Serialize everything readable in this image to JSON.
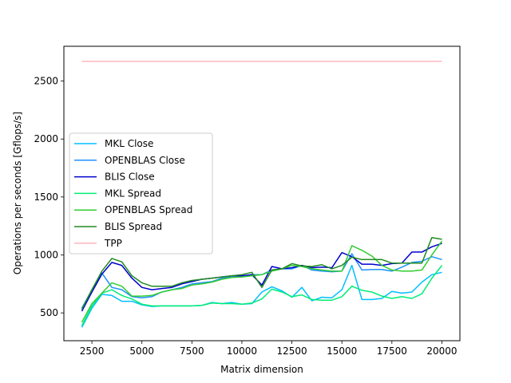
{
  "chart_data": {
    "type": "line",
    "title": "",
    "xlabel": "Matrix dimension",
    "ylabel": "Operations per seconds [Gflops/s]",
    "xlim": [
      1100,
      20900
    ],
    "ylim": [
      260,
      2800
    ],
    "xticks": [
      2500,
      5000,
      7500,
      10000,
      12500,
      15000,
      17500,
      20000
    ],
    "xtick_labels": [
      "2500",
      "5000",
      "7500",
      "10000",
      "12500",
      "15000",
      "17500",
      "20000"
    ],
    "yticks": [
      500,
      1000,
      1500,
      2000,
      2500
    ],
    "ytick_labels": [
      "500",
      "1000",
      "1500",
      "2000",
      "2500"
    ],
    "grid": false,
    "legend_position": "center-left",
    "x": [
      2000,
      2500,
      3000,
      3500,
      4000,
      4500,
      5000,
      5500,
      6000,
      6500,
      7000,
      7500,
      8000,
      8500,
      9000,
      9500,
      10000,
      10500,
      11000,
      11500,
      12000,
      12500,
      13000,
      13500,
      14000,
      14500,
      15000,
      15500,
      16000,
      16500,
      17000,
      17500,
      18000,
      18500,
      19000,
      19500,
      20000
    ],
    "series": [
      {
        "name": "MKL Close",
        "color": "#00bfff",
        "values": [
          375,
          540,
          660,
          650,
          600,
          600,
          570,
          555,
          560,
          560,
          560,
          560,
          565,
          590,
          580,
          590,
          575,
          580,
          680,
          725,
          690,
          635,
          720,
          605,
          635,
          630,
          700,
          910,
          615,
          615,
          625,
          685,
          670,
          680,
          765,
          830,
          850
        ]
      },
      {
        "name": "OPENBLAS Close",
        "color": "#1e90ff",
        "values": [
          540,
          700,
          845,
          720,
          700,
          640,
          630,
          640,
          680,
          700,
          720,
          750,
          760,
          770,
          800,
          810,
          810,
          830,
          830,
          870,
          880,
          880,
          910,
          870,
          860,
          855,
          860,
          1010,
          870,
          875,
          875,
          860,
          895,
          935,
          945,
          985,
          960
        ]
      },
      {
        "name": "BLIS Close",
        "color": "#0000cd",
        "values": [
          515,
          680,
          835,
          935,
          910,
          800,
          720,
          700,
          710,
          720,
          750,
          770,
          790,
          800,
          810,
          820,
          820,
          830,
          740,
          900,
          880,
          890,
          910,
          890,
          895,
          890,
          1020,
          985,
          920,
          920,
          910,
          925,
          930,
          1025,
          1025,
          1070,
          1100
        ]
      },
      {
        "name": "MKL Spread",
        "color": "#00ee76",
        "values": [
          390,
          560,
          670,
          700,
          650,
          620,
          575,
          560,
          560,
          560,
          560,
          560,
          565,
          585,
          580,
          580,
          575,
          585,
          620,
          705,
          680,
          640,
          655,
          615,
          610,
          610,
          640,
          730,
          695,
          680,
          645,
          625,
          640,
          625,
          665,
          800,
          910
        ]
      },
      {
        "name": "OPENBLAS Spread",
        "color": "#32cd32",
        "values": [
          420,
          580,
          670,
          760,
          730,
          645,
          645,
          650,
          680,
          700,
          710,
          740,
          750,
          765,
          790,
          805,
          810,
          820,
          830,
          860,
          880,
          910,
          900,
          880,
          870,
          860,
          860,
          1080,
          1040,
          990,
          910,
          870,
          860,
          860,
          870,
          1000,
          1120
        ]
      },
      {
        "name": "BLIS Spread",
        "color": "#228b22",
        "values": [
          530,
          700,
          860,
          970,
          940,
          820,
          760,
          730,
          730,
          730,
          760,
          780,
          790,
          800,
          810,
          820,
          830,
          850,
          720,
          870,
          880,
          925,
          905,
          900,
          915,
          880,
          910,
          980,
          960,
          960,
          960,
          930,
          930,
          930,
          930,
          1150,
          1135
        ]
      },
      {
        "name": "TPP",
        "color": "#ffb6c1",
        "values": [
          2670,
          2670,
          2670,
          2670,
          2670,
          2670,
          2670,
          2670,
          2670,
          2670,
          2670,
          2670,
          2670,
          2670,
          2670,
          2670,
          2670,
          2670,
          2670,
          2670,
          2670,
          2670,
          2670,
          2670,
          2670,
          2670,
          2670,
          2670,
          2670,
          2670,
          2670,
          2670,
          2670,
          2670,
          2670,
          2670,
          2670
        ]
      }
    ]
  }
}
